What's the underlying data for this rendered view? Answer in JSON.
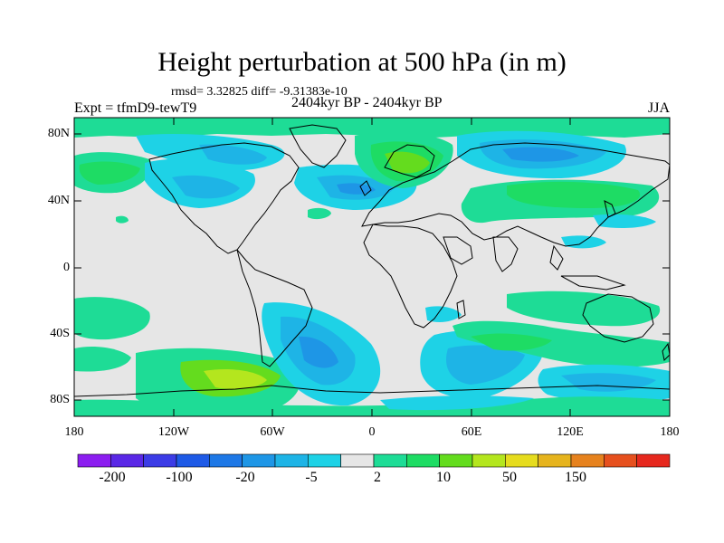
{
  "header": {
    "title": "Height perturbation at 500 hPa (in m)",
    "stats": "rmsd= 3.32825  diff= -9.31383e-10",
    "experiment": "Expt = tfmD9-tewT9",
    "period": "2404kyr BP - 2404kyr BP",
    "season": "JJA"
  },
  "map": {
    "background_color": "#e6e6e6",
    "lat_ticks": [
      "80N",
      "40N",
      "0",
      "40S",
      "80S"
    ],
    "lon_ticks": [
      "180",
      "120W",
      "60W",
      "0",
      "60E",
      "120E",
      "180"
    ]
  },
  "colorbar": {
    "colors": [
      "#8c1ef0",
      "#5a28e6",
      "#3c3ce6",
      "#1e5ae6",
      "#1e78e6",
      "#1e96e6",
      "#1eb4e6",
      "#1ed2e6",
      "#e6e6e6",
      "#1edc96",
      "#1edc64",
      "#64dc1e",
      "#b4e61e",
      "#e6dc1e",
      "#e6b41e",
      "#e6821e",
      "#e6501e",
      "#e6281e"
    ],
    "labels": [
      "-200",
      "-100",
      "-20",
      "-5",
      "2",
      "10",
      "50",
      "150"
    ]
  }
}
